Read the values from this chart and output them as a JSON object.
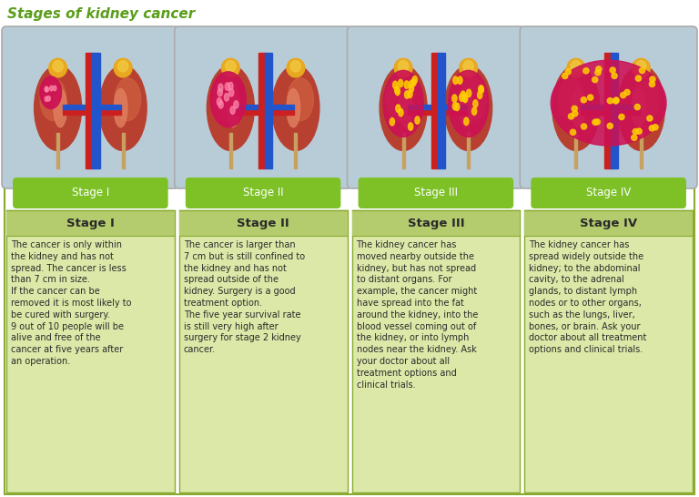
{
  "title": "Stages of kidney cancer",
  "title_color": "#5a9e1a",
  "title_fontsize": 11,
  "background_color": "#000000",
  "stages": [
    "Stage I",
    "Stage II",
    "Stage III",
    "Stage IV"
  ],
  "stage_label_bg": "#7dc127",
  "stage_label_color": "#ffffff",
  "header_bg": "#b5cc6e",
  "header_color": "#2a2a2a",
  "body_bg": "#dce8a8",
  "body_text_color": "#2a2a2a",
  "image_panel_bg": "#b8ccd8",
  "border_color": "#8aab30",
  "outer_border_color": "#999999",
  "descriptions": [
    "The cancer is only within\nthe kidney and has not\nspread. The cancer is less\nthan 7 cm in size.\nIf the cancer can be\nremoved it is most likely to\nbe cured with surgery.\n9 out of 10 people will be\nalive and free of the\ncancer at five years after\nan operation.",
    "The cancer is larger than\n7 cm but is still confined to\nthe kidney and has not\nspread outside of the\nkidney. Surgery is a good\ntreatment option.\nThe five year survival rate\nis still very high after\nsurgery for stage 2 kidney\ncancer.",
    "The kidney cancer has\nmoved nearby outside the\nkidney, but has not spread\nto distant organs. For\nexample, the cancer might\nhave spread into the fat\naround the kidney, into the\nblood vessel coming out of\nthe kidney, or into lymph\nnodes near the kidney. Ask\nyour doctor about all\ntreatment options and\nclinical trials.",
    "The kidney cancer has\nspread widely outside the\nkidney; to the abdominal\ncavity, to the adrenal\nglands, to distant lymph\nnodes or to other organs,\nsuch as the lungs, liver,\nbones, or brain. Ask your\ndoctor about all treatment\noptions and clinical trials."
  ],
  "fig_width": 7.68,
  "fig_height": 5.46,
  "dpi": 100
}
